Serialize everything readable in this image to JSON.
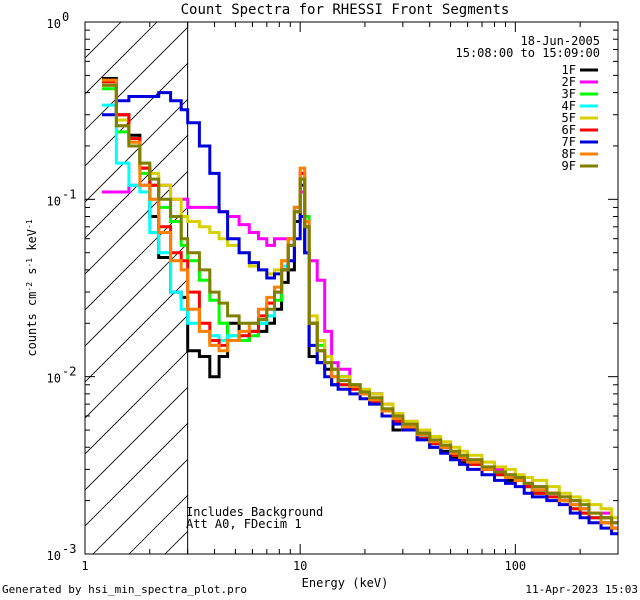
{
  "chart_data": {
    "type": "line",
    "title": "Count Spectra for RHESSI Front Segments",
    "xlabel": "Energy (keV)",
    "ylabel_parts": [
      "counts cm",
      "-2",
      " s",
      "-1",
      " keV",
      "-1"
    ],
    "x_scale": "log",
    "y_scale": "log",
    "xlim": [
      1,
      300
    ],
    "ylim": [
      0.001,
      1
    ],
    "x_ticks": [
      {
        "value": 1,
        "label": "1"
      },
      {
        "value": 10,
        "label": "10"
      },
      {
        "value": 100,
        "label": "100"
      }
    ],
    "y_ticks": [
      {
        "value": 1,
        "label_base": "10",
        "label_exp": "0"
      },
      {
        "value": 0.1,
        "label_base": "10",
        "label_exp": "-1"
      },
      {
        "value": 0.01,
        "label_base": "10",
        "label_exp": "-2"
      },
      {
        "value": 0.001,
        "label_base": "10",
        "label_exp": "-3"
      }
    ],
    "date_line": "18-Jun-2005",
    "time_line": "15:08:00 to 15:09:00",
    "legend_position": "top-right",
    "shaded_region": {
      "x_from": 1,
      "x_to": 3,
      "pattern": "diagonal-hatch"
    },
    "annotations": [
      "Includes Background",
      "Att A0, FDecim 1"
    ],
    "series": [
      {
        "name": "1F",
        "color": "#000000",
        "x": [
          1.2,
          1.4,
          1.6,
          1.8,
          2.0,
          2.2,
          2.5,
          2.8,
          3.0,
          3.4,
          3.8,
          4.2,
          4.6,
          5.2,
          5.8,
          6.4,
          7.0,
          7.6,
          8.2,
          8.8,
          9.4,
          10.0,
          10.5,
          11.0,
          12,
          13,
          14,
          15,
          17,
          19,
          21,
          24,
          27,
          30,
          35,
          40,
          45,
          50,
          55,
          60,
          70,
          80,
          90,
          100,
          110,
          120,
          140,
          160,
          180,
          200,
          220,
          250,
          280
        ],
        "y": [
          0.48,
          0.3,
          0.23,
          0.15,
          0.08,
          0.047,
          0.03,
          0.028,
          0.014,
          0.013,
          0.01,
          0.013,
          0.02,
          0.016,
          0.018,
          0.018,
          0.02,
          0.024,
          0.034,
          0.04,
          0.075,
          0.12,
          0.05,
          0.013,
          0.012,
          0.011,
          0.009,
          0.01,
          0.009,
          0.008,
          0.008,
          0.006,
          0.005,
          0.005,
          0.0045,
          0.004,
          0.0038,
          0.0035,
          0.0033,
          0.0032,
          0.003,
          0.0028,
          0.0026,
          0.0026,
          0.0024,
          0.0022,
          0.0022,
          0.002,
          0.0019,
          0.0018,
          0.0016,
          0.0016,
          0.0014
        ]
      },
      {
        "name": "2F",
        "color": "#ff00ff",
        "x": [
          1.2,
          1.4,
          1.6,
          1.8,
          2.0,
          2.2,
          2.5,
          2.8,
          3.0,
          3.4,
          3.8,
          4.2,
          4.6,
          5.2,
          5.8,
          6.4,
          7.0,
          7.6,
          8.2,
          8.8,
          9.4,
          10.0,
          10.5,
          11.0,
          12,
          13,
          14,
          15,
          17,
          19,
          21,
          24,
          27,
          30,
          35,
          40,
          45,
          50,
          55,
          60,
          70,
          80,
          90,
          100,
          110,
          120,
          140,
          160,
          180,
          200,
          220,
          250,
          280
        ],
        "y": [
          0.11,
          0.11,
          0.12,
          0.12,
          0.12,
          0.12,
          0.1,
          0.1,
          0.09,
          0.09,
          0.09,
          0.085,
          0.08,
          0.072,
          0.065,
          0.06,
          0.055,
          0.06,
          0.06,
          0.06,
          0.09,
          0.11,
          0.08,
          0.045,
          0.035,
          0.018,
          0.012,
          0.011,
          0.009,
          0.008,
          0.008,
          0.007,
          0.006,
          0.005,
          0.0048,
          0.0042,
          0.004,
          0.0036,
          0.0034,
          0.0034,
          0.003,
          0.003,
          0.0028,
          0.0027,
          0.0025,
          0.0024,
          0.0022,
          0.0021,
          0.002,
          0.0018,
          0.0016,
          0.0017,
          0.0015
        ]
      },
      {
        "name": "3F",
        "color": "#00ff00",
        "x": [
          1.2,
          1.4,
          1.6,
          1.8,
          2.0,
          2.2,
          2.5,
          2.8,
          3.0,
          3.4,
          3.8,
          4.2,
          4.6,
          5.2,
          5.8,
          6.4,
          7.0,
          7.6,
          8.2,
          8.8,
          9.4,
          10.0,
          10.5,
          11.0,
          12,
          13,
          14,
          15,
          17,
          19,
          21,
          24,
          27,
          30,
          35,
          40,
          45,
          50,
          55,
          60,
          70,
          80,
          90,
          100,
          110,
          120,
          140,
          160,
          180,
          200,
          220,
          250,
          280
        ],
        "y": [
          0.42,
          0.24,
          0.2,
          0.14,
          0.12,
          0.09,
          0.075,
          0.055,
          0.045,
          0.035,
          0.027,
          0.02,
          0.017,
          0.016,
          0.017,
          0.02,
          0.022,
          0.027,
          0.04,
          0.06,
          0.09,
          0.13,
          0.08,
          0.02,
          0.015,
          0.012,
          0.011,
          0.009,
          0.009,
          0.008,
          0.007,
          0.006,
          0.0055,
          0.005,
          0.0045,
          0.0042,
          0.004,
          0.0036,
          0.0034,
          0.0032,
          0.003,
          0.0028,
          0.0027,
          0.0026,
          0.0024,
          0.0022,
          0.0021,
          0.002,
          0.0018,
          0.0017,
          0.0016,
          0.0015,
          0.0014
        ]
      },
      {
        "name": "4F",
        "color": "#00ffff",
        "x": [
          1.2,
          1.4,
          1.6,
          1.8,
          2.0,
          2.2,
          2.5,
          2.8,
          3.0,
          3.4,
          3.8,
          4.2,
          4.6,
          5.2,
          5.8,
          6.4,
          7.0,
          7.6,
          8.2,
          8.8,
          9.4,
          10.0,
          10.5,
          11.0,
          12,
          13,
          14,
          15,
          17,
          19,
          21,
          24,
          27,
          30,
          35,
          40,
          45,
          50,
          55,
          60,
          70,
          80,
          90,
          100,
          110,
          120,
          140,
          160,
          180,
          200,
          220,
          250,
          280
        ],
        "y": [
          0.34,
          0.16,
          0.12,
          0.11,
          0.065,
          0.05,
          0.03,
          0.024,
          0.02,
          0.018,
          0.017,
          0.016,
          0.017,
          0.017,
          0.018,
          0.02,
          0.022,
          0.03,
          0.042,
          0.06,
          0.085,
          0.14,
          0.07,
          0.02,
          0.014,
          0.012,
          0.011,
          0.01,
          0.009,
          0.008,
          0.0075,
          0.006,
          0.0055,
          0.005,
          0.0046,
          0.0042,
          0.004,
          0.0037,
          0.0034,
          0.0032,
          0.003,
          0.0028,
          0.0027,
          0.0026,
          0.0024,
          0.0023,
          0.0021,
          0.002,
          0.0019,
          0.0018,
          0.0016,
          0.0015,
          0.0014
        ]
      },
      {
        "name": "5F",
        "color": "#d8d000",
        "x": [
          1.2,
          1.4,
          1.6,
          1.8,
          2.0,
          2.2,
          2.5,
          2.8,
          3.0,
          3.4,
          3.8,
          4.2,
          4.6,
          5.2,
          5.8,
          6.4,
          7.0,
          7.6,
          8.2,
          8.8,
          9.4,
          10.0,
          10.5,
          11.0,
          12,
          13,
          14,
          15,
          17,
          19,
          21,
          24,
          27,
          30,
          35,
          40,
          45,
          50,
          55,
          60,
          70,
          80,
          90,
          100,
          110,
          120,
          140,
          160,
          180,
          200,
          220,
          250,
          280
        ],
        "y": [
          0.44,
          0.28,
          0.22,
          0.16,
          0.14,
          0.12,
          0.1,
          0.08,
          0.075,
          0.07,
          0.065,
          0.06,
          0.055,
          0.05,
          0.042,
          0.04,
          0.038,
          0.04,
          0.045,
          0.06,
          0.09,
          0.13,
          0.07,
          0.022,
          0.016,
          0.013,
          0.011,
          0.01,
          0.009,
          0.0085,
          0.008,
          0.007,
          0.0062,
          0.0056,
          0.005,
          0.0046,
          0.0043,
          0.004,
          0.0038,
          0.0036,
          0.0033,
          0.0031,
          0.003,
          0.0028,
          0.0027,
          0.0026,
          0.0024,
          0.0022,
          0.0021,
          0.002,
          0.0019,
          0.0018,
          0.0016
        ]
      },
      {
        "name": "6F",
        "color": "#ff0000",
        "x": [
          1.2,
          1.4,
          1.6,
          1.8,
          2.0,
          2.2,
          2.5,
          2.8,
          3.0,
          3.4,
          3.8,
          4.2,
          4.6,
          5.2,
          5.8,
          6.4,
          7.0,
          7.6,
          8.2,
          8.8,
          9.4,
          10.0,
          10.5,
          11.0,
          12,
          13,
          14,
          15,
          17,
          19,
          21,
          24,
          27,
          30,
          35,
          40,
          45,
          50,
          55,
          60,
          70,
          80,
          90,
          100,
          110,
          120,
          140,
          160,
          180,
          200,
          220,
          250,
          280
        ],
        "y": [
          0.46,
          0.3,
          0.22,
          0.15,
          0.12,
          0.07,
          0.05,
          0.045,
          0.03,
          0.02,
          0.016,
          0.015,
          0.016,
          0.017,
          0.018,
          0.022,
          0.026,
          0.03,
          0.04,
          0.055,
          0.085,
          0.14,
          0.07,
          0.02,
          0.014,
          0.012,
          0.01,
          0.009,
          0.0085,
          0.008,
          0.0072,
          0.006,
          0.0056,
          0.005,
          0.0045,
          0.0042,
          0.004,
          0.0036,
          0.0034,
          0.0032,
          0.003,
          0.0028,
          0.0027,
          0.0026,
          0.0024,
          0.0022,
          0.0021,
          0.002,
          0.0018,
          0.0017,
          0.0016,
          0.0015,
          0.0014
        ]
      },
      {
        "name": "7F",
        "color": "#0000dd",
        "x": [
          1.2,
          1.4,
          1.6,
          1.8,
          2.0,
          2.2,
          2.5,
          2.8,
          3.0,
          3.4,
          3.8,
          4.2,
          4.6,
          5.2,
          5.8,
          6.4,
          7.0,
          7.6,
          8.2,
          8.8,
          9.4,
          10.0,
          10.5,
          11.0,
          12,
          13,
          14,
          15,
          17,
          19,
          21,
          24,
          27,
          30,
          35,
          40,
          45,
          50,
          55,
          60,
          70,
          80,
          90,
          100,
          110,
          120,
          140,
          160,
          180,
          200,
          220,
          250,
          280
        ],
        "y": [
          0.3,
          0.36,
          0.38,
          0.38,
          0.38,
          0.4,
          0.36,
          0.32,
          0.27,
          0.2,
          0.14,
          0.085,
          0.06,
          0.05,
          0.044,
          0.04,
          0.036,
          0.038,
          0.04,
          0.045,
          0.06,
          0.08,
          0.05,
          0.015,
          0.012,
          0.01,
          0.009,
          0.0085,
          0.008,
          0.0075,
          0.007,
          0.006,
          0.0054,
          0.005,
          0.0044,
          0.004,
          0.0037,
          0.0034,
          0.0032,
          0.003,
          0.0028,
          0.0026,
          0.0025,
          0.0024,
          0.0022,
          0.0021,
          0.002,
          0.0019,
          0.0017,
          0.0016,
          0.0015,
          0.0014,
          0.0013
        ]
      },
      {
        "name": "8F",
        "color": "#ff8000",
        "x": [
          1.2,
          1.4,
          1.6,
          1.8,
          2.0,
          2.2,
          2.5,
          2.8,
          3.0,
          3.4,
          3.8,
          4.2,
          4.6,
          5.2,
          5.8,
          6.4,
          7.0,
          7.6,
          8.2,
          8.8,
          9.4,
          10.0,
          10.5,
          11.0,
          12,
          13,
          14,
          15,
          17,
          19,
          21,
          24,
          27,
          30,
          35,
          40,
          45,
          50,
          55,
          60,
          70,
          80,
          90,
          100,
          110,
          120,
          140,
          160,
          180,
          200,
          220,
          250,
          280
        ],
        "y": [
          0.47,
          0.26,
          0.21,
          0.12,
          0.1,
          0.065,
          0.045,
          0.04,
          0.024,
          0.018,
          0.015,
          0.014,
          0.016,
          0.018,
          0.02,
          0.024,
          0.028,
          0.032,
          0.045,
          0.06,
          0.09,
          0.15,
          0.075,
          0.02,
          0.014,
          0.012,
          0.01,
          0.0095,
          0.0088,
          0.008,
          0.0074,
          0.0064,
          0.0058,
          0.0052,
          0.0047,
          0.0043,
          0.004,
          0.0037,
          0.0035,
          0.0033,
          0.003,
          0.0029,
          0.0027,
          0.0026,
          0.0025,
          0.0023,
          0.0022,
          0.002,
          0.0019,
          0.0018,
          0.0017,
          0.0015,
          0.0014
        ]
      },
      {
        "name": "9F",
        "color": "#808000",
        "x": [
          1.2,
          1.4,
          1.6,
          1.8,
          2.0,
          2.2,
          2.5,
          2.8,
          3.0,
          3.4,
          3.8,
          4.2,
          4.6,
          5.2,
          5.8,
          6.4,
          7.0,
          7.6,
          8.2,
          8.8,
          9.4,
          10.0,
          10.5,
          11.0,
          12,
          13,
          14,
          15,
          17,
          19,
          21,
          24,
          27,
          30,
          35,
          40,
          45,
          50,
          55,
          60,
          70,
          80,
          90,
          100,
          110,
          120,
          140,
          160,
          180,
          200,
          220,
          250,
          280
        ],
        "y": [
          0.44,
          0.26,
          0.2,
          0.16,
          0.13,
          0.1,
          0.08,
          0.06,
          0.05,
          0.04,
          0.03,
          0.026,
          0.022,
          0.02,
          0.02,
          0.021,
          0.024,
          0.03,
          0.04,
          0.055,
          0.085,
          0.13,
          0.07,
          0.02,
          0.014,
          0.012,
          0.011,
          0.0095,
          0.009,
          0.0082,
          0.0076,
          0.0066,
          0.006,
          0.0054,
          0.0048,
          0.0044,
          0.0041,
          0.0038,
          0.0036,
          0.0034,
          0.0031,
          0.0029,
          0.0028,
          0.0027,
          0.0025,
          0.0024,
          0.0022,
          0.0021,
          0.002,
          0.0019,
          0.0017,
          0.0016,
          0.0015
        ]
      }
    ]
  },
  "footer": {
    "left": "Generated by hsi_min_spectra_plot.pro",
    "right": "11-Apr-2023 15:03"
  }
}
